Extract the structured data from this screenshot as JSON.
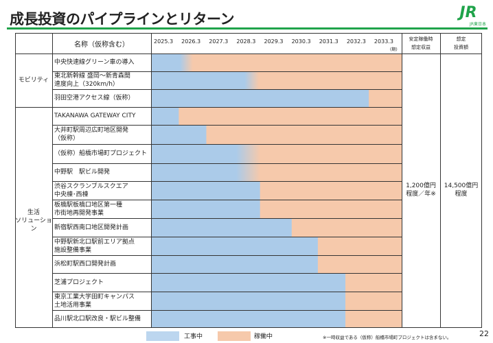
{
  "page": {
    "title": "成長投資のパイプラインとリターン",
    "page_number": "22",
    "logo_text": "JR",
    "logo_sub": "JR東日本"
  },
  "table": {
    "header_name": "名称（仮称含む）",
    "header_revenue": "安定稼働時\n想定収益",
    "header_investment": "想定\n投資額",
    "period_unit": "(期)",
    "revenue_value": "1,200億円\n程度／年※",
    "investment_value": "14,500億円\n程度",
    "categories": [
      {
        "label": "モビリティ"
      },
      {
        "label": "生活\nソリューション"
      }
    ]
  },
  "legend": {
    "construction": "工事中",
    "operation": "稼働中"
  },
  "footnote": "※一時収益である（仮称）船橋市場町プロジェクトは含まない。",
  "colors": {
    "construction": "#abcbe9",
    "operation": "#f6c9ab",
    "accent": "#1fa34a"
  },
  "chart_data": {
    "type": "bar",
    "orientation": "horizontal-gantt",
    "xlim": [
      2024.8,
      2033.9
    ],
    "ticks": [
      "2025.3",
      "2026.3",
      "2027.3",
      "2028.3",
      "2029.3",
      "2030.3",
      "2031.3",
      "2032.3",
      "2033.3"
    ],
    "tick_values": [
      2025.25,
      2026.25,
      2027.25,
      2028.25,
      2029.25,
      2030.25,
      2031.25,
      2032.25,
      2033.25
    ],
    "series": [
      {
        "name": "工事中"
      },
      {
        "name": "稼働中"
      }
    ],
    "rows": [
      {
        "name": "中央快速線グリーン車の導入",
        "category": "モビリティ",
        "construction_end": 2025.85,
        "transition_end": 2026.3
      },
      {
        "name": "東北新幹線 盛岡～新青森間\n速度向上（320km/h）",
        "category": "モビリティ",
        "construction_end": 2028.2,
        "transition_end": 2028.7
      },
      {
        "name": "羽田空港アクセス線（仮称）",
        "category": "モビリティ",
        "construction_end": 2032.7
      },
      {
        "name": "TAKANAWA GATEWAY CITY",
        "category": "生活ソリューション",
        "construction_end": 2025.8
      },
      {
        "name": "大井町駅周辺広町地区開発\n（仮称）",
        "category": "生活ソリューション",
        "construction_end": 2026.8
      },
      {
        "name": "（仮称）船橋市場町プロジェクト",
        "category": "生活ソリューション",
        "construction_end": 2027.9,
        "transition_end": 2028.75
      },
      {
        "name": "中野駅　駅ビル開発",
        "category": "生活ソリューション",
        "construction_end": 2027.9,
        "transition_end": 2028.75
      },
      {
        "name": "渋谷スクランブルスクエア\n中央棟･西棟",
        "category": "生活ソリューション",
        "construction_end": 2028.75
      },
      {
        "name": "板橋駅板橋口地区第一種\n市街地再開発事業",
        "category": "生活ソリューション",
        "construction_end": 2028.75
      },
      {
        "name": "新宿駅西南口地区開発計画",
        "category": "生活ソリューション",
        "construction_end": 2029.9
      },
      {
        "name": "中野駅新北口駅前エリア拠点\n施設整備事業",
        "category": "生活ソリューション",
        "construction_end": 2030.85
      },
      {
        "name": "浜松町駅西口開発計画",
        "category": "生活ソリューション",
        "construction_end": 2030.85
      },
      {
        "name": "芝浦プロジェクト",
        "category": "生活ソリューション",
        "construction_end": 2031.85
      },
      {
        "name": "東京工業大学田町キャンパス\n土地活用事業",
        "category": "生活ソリューション",
        "construction_end": 2031.85
      },
      {
        "name": "品川駅北口駅改良・駅ビル整備",
        "category": "生活ソリューション",
        "construction_end": 2031.85
      }
    ]
  }
}
